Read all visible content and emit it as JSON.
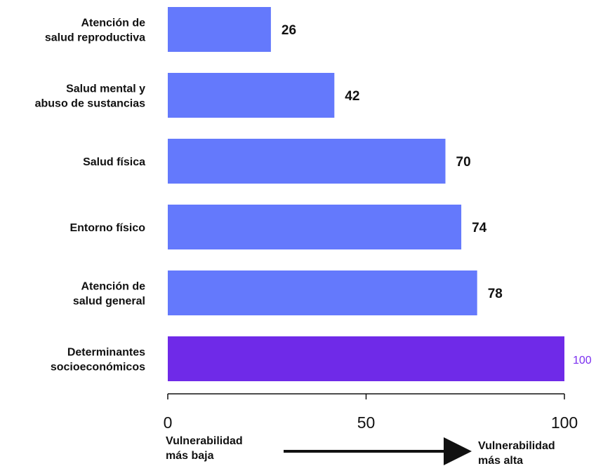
{
  "chart_data": {
    "type": "bar",
    "orientation": "horizontal",
    "categories": [
      [
        "Atención de",
        "salud reproductiva"
      ],
      [
        "Salud mental y",
        "abuso de sustancias"
      ],
      [
        "Salud física"
      ],
      [
        "Entorno físico"
      ],
      [
        "Atención de",
        "salud general"
      ],
      [
        "Determinantes",
        "socioeconómicos"
      ]
    ],
    "values": [
      26,
      42,
      70,
      74,
      78,
      100
    ],
    "value_labels": [
      "26",
      "42",
      "70",
      "74",
      "78",
      "100"
    ],
    "highlight_index": 5,
    "xlim": [
      0,
      100
    ],
    "xticks": [
      0,
      50,
      100
    ],
    "xtick_labels": [
      "0",
      "50",
      "100"
    ],
    "grid": false,
    "colors": {
      "bar": "#6479fc",
      "highlight_bar": "#6f2ae8",
      "highlight_label": "#7b2ff0",
      "text": "#111111",
      "axis": "#111111"
    },
    "direction": {
      "low_label": [
        "Vulnerabilidad",
        "más baja"
      ],
      "high_label": [
        "Vulnerabilidad",
        "más alta"
      ]
    }
  }
}
